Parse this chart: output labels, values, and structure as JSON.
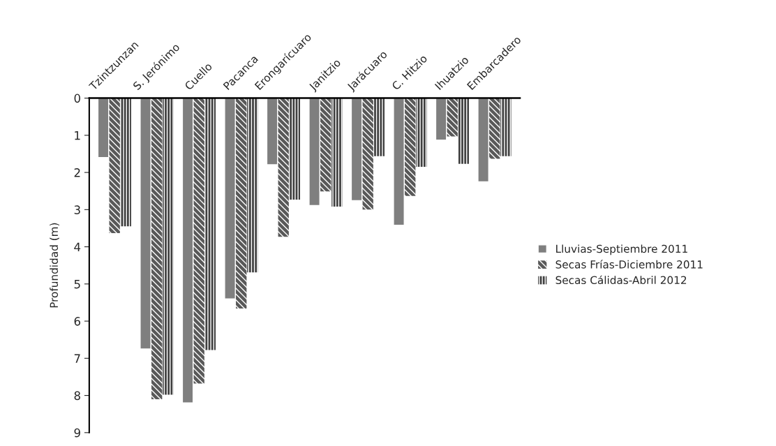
{
  "chart_data": {
    "type": "bar",
    "ylabel": "Profundidad (m)",
    "categories": [
      "Tzintzunzan",
      "S. Jerónimo",
      "Cuello",
      "Pacanca",
      "Erongarícuaro",
      "Janitzio",
      "Jarácuaro",
      "C. Hitzio",
      "Ihuatzio",
      "Embarcadero"
    ],
    "series": [
      {
        "name": "Lluvias-Septiembre 2011",
        "color": "#7f7f7f",
        "values": [
          1.6,
          6.75,
          8.2,
          5.4,
          1.79,
          2.89,
          2.76,
          3.42,
          1.13,
          2.25
        ]
      },
      {
        "name": "Secas Frías-Diciembre 2011",
        "color": "#595959",
        "values": [
          3.63,
          8.1,
          7.68,
          5.66,
          3.73,
          2.51,
          3.0,
          2.63,
          1.03,
          1.63
        ]
      },
      {
        "name": "Secas Cálidas-Abril 2012",
        "color": "#404040",
        "values": [
          3.45,
          7.98,
          6.78,
          4.69,
          2.73,
          2.92,
          1.56,
          1.85,
          1.77,
          1.56
        ]
      }
    ],
    "ylim": [
      9,
      0
    ],
    "yticks": [
      0,
      1,
      2,
      3,
      4,
      5,
      6,
      7,
      8,
      9
    ],
    "grid": false,
    "legend": "right"
  }
}
